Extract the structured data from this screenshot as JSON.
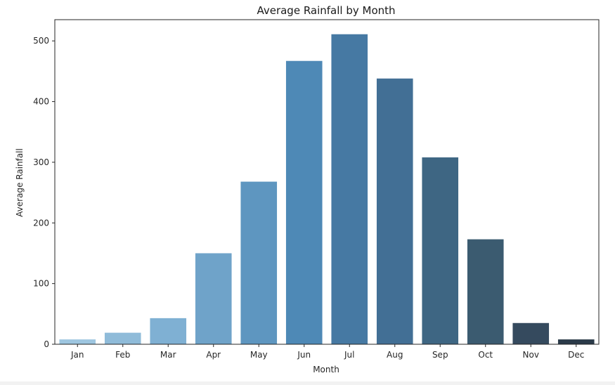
{
  "chart_data": {
    "type": "bar",
    "title": "Average Rainfall by Month",
    "xlabel": "Month",
    "ylabel": "Average Rainfall",
    "categories": [
      "Jan",
      "Feb",
      "Mar",
      "Apr",
      "May",
      "Jun",
      "Jul",
      "Aug",
      "Sep",
      "Oct",
      "Nov",
      "Dec"
    ],
    "values": [
      8,
      19,
      43,
      150,
      268,
      467,
      511,
      438,
      308,
      173,
      35,
      8
    ],
    "colors": [
      "#9ec6e0",
      "#8fbbd9",
      "#7fb0d3",
      "#6fa3c9",
      "#5e96c0",
      "#4e89b6",
      "#4679a3",
      "#426f95",
      "#3e6683",
      "#3b5b70",
      "#354a5e",
      "#2b3a49"
    ],
    "ylim": [
      0,
      535
    ],
    "yticks": [
      0,
      100,
      200,
      300,
      400,
      500
    ],
    "grid": false,
    "legend": "none"
  }
}
